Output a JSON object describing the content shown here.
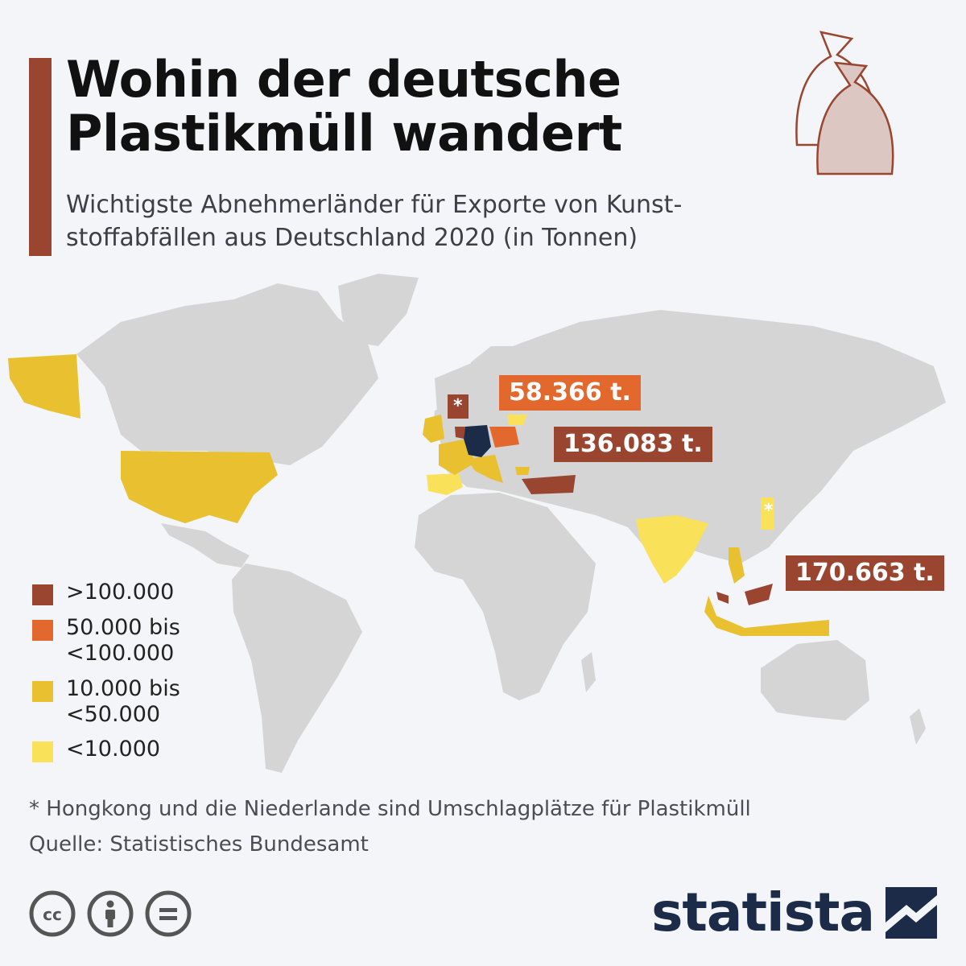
{
  "header": {
    "title_line1": "Wohin der deutsche",
    "title_line2": "Plastikmüll wandert",
    "subtitle_line1": "Wichtigste Abnehmerländer für Exporte von Kunst-",
    "subtitle_line2": "stoffabfällen aus Deutschland 2020 (in Tonnen)"
  },
  "colors": {
    "accent": "#9a4530",
    "land": "#d5d5d5",
    "germany": "#1b2b48",
    "over_100000": "#9a4530",
    "50000_to_100000": "#e2682e",
    "10000_to_50000": "#e8c030",
    "under_10000": "#f9e15a"
  },
  "callouts": {
    "poland": "58.366 t.",
    "turkey": "136.083 t.",
    "malaysia": "170.663 t.",
    "netherlands_marker": "*",
    "hongkong_marker": "*"
  },
  "legend": [
    {
      "label": ">100.000",
      "color": "#9a4530"
    },
    {
      "label": "50.000 bis\n<100.000",
      "color": "#e2682e"
    },
    {
      "label": "10.000 bis\n<50.000",
      "color": "#e8c030"
    },
    {
      "label": "<10.000",
      "color": "#f9e15a"
    }
  ],
  "footer": {
    "footnote": "* Hongkong und die Niederlande sind Umschlagplätze für Plastikmüll",
    "source": "Quelle: Statistisches Bundesamt",
    "brand": "statista"
  },
  "icons": [
    "plastic-bag-icon",
    "cc-icon",
    "by-icon",
    "nd-icon",
    "statista-logo-icon"
  ]
}
